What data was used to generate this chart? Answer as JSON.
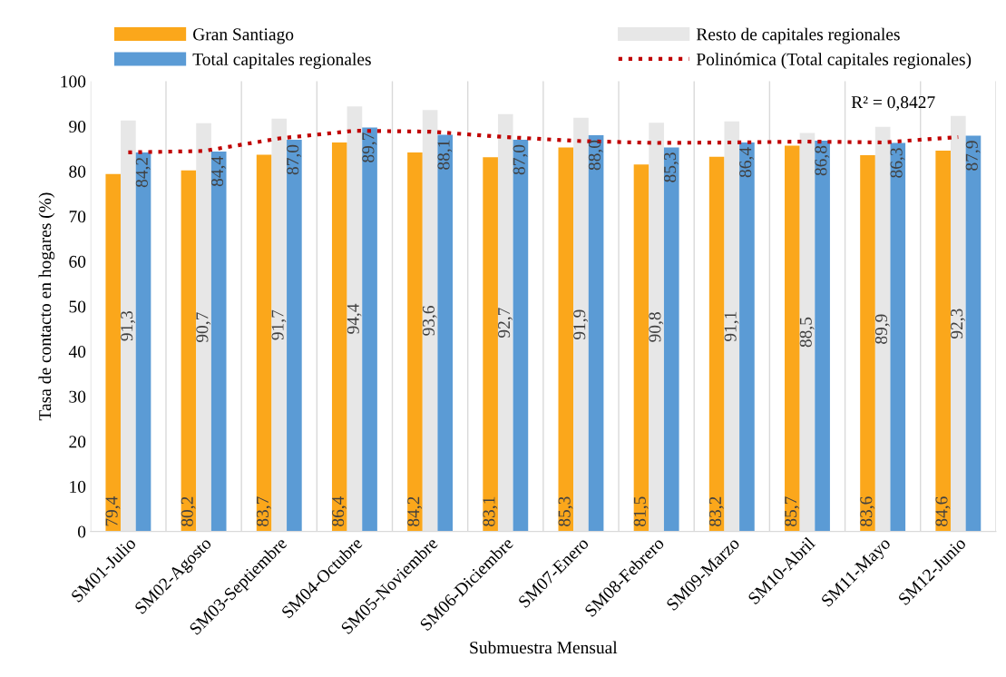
{
  "chart_data": {
    "type": "bar",
    "xlabel": "Submuestra Mensual",
    "ylabel": "Tasa de contacto en hogares (%)",
    "categories": [
      "SM01-Julio",
      "SM02-Agosto",
      "SM03-Septiembre",
      "SM04-Octubre",
      "SM05-Noviembre",
      "SM06-Diciembre",
      "SM07-Enero",
      "SM08-Febrero",
      "SM09-Marzo",
      "SM10-Abril",
      "SM11-Mayo",
      "SM12-Junio"
    ],
    "series": [
      {
        "name": "Gran Santiago",
        "color": "#fba71b",
        "values": [
          79.4,
          80.2,
          83.7,
          86.4,
          84.2,
          83.1,
          85.3,
          81.5,
          83.2,
          85.7,
          83.6,
          84.6
        ],
        "value_labels": [
          "79,4",
          "80,2",
          "83,7",
          "86,4",
          "84,2",
          "83,1",
          "85,3",
          "81,5",
          "83,2",
          "85,7",
          "83,6",
          "84,6"
        ]
      },
      {
        "name": "Resto de capitales regionales",
        "color": "#e7e7e7",
        "values": [
          91.3,
          90.7,
          91.7,
          94.4,
          93.6,
          92.7,
          91.9,
          90.8,
          91.1,
          88.5,
          89.9,
          92.3
        ],
        "value_labels": [
          "91,3",
          "90,7",
          "91,7",
          "94,4",
          "93,6",
          "92,7",
          "91,9",
          "90,8",
          "91,1",
          "88,5",
          "89,9",
          "92,3"
        ]
      },
      {
        "name": "Total capitales regionales",
        "color": "#5b9bd5",
        "values": [
          84.2,
          84.4,
          87.0,
          89.7,
          88.1,
          87.0,
          88.0,
          85.3,
          86.4,
          86.8,
          86.3,
          87.9
        ],
        "value_labels": [
          "84,2",
          "84,4",
          "87,0",
          "89,7",
          "88,1",
          "87,0",
          "88,0",
          "85,3",
          "86,4",
          "86,8",
          "86,3",
          "87,9"
        ]
      },
      {
        "name": "Polinómica (Total capitales regionales)",
        "type": "line",
        "color": "#c00000",
        "line_style": "dotted",
        "values": [
          84.2,
          84.5,
          87.3,
          89.0,
          88.8,
          87.6,
          86.7,
          86.3,
          86.4,
          86.6,
          86.4,
          87.6
        ]
      }
    ],
    "annotations": [
      "R² = 0,8427"
    ],
    "ylim": [
      0,
      100
    ],
    "yticks": [
      0,
      10,
      20,
      30,
      40,
      50,
      60,
      70,
      80,
      90,
      100
    ],
    "grid": "x",
    "legend": "top"
  }
}
